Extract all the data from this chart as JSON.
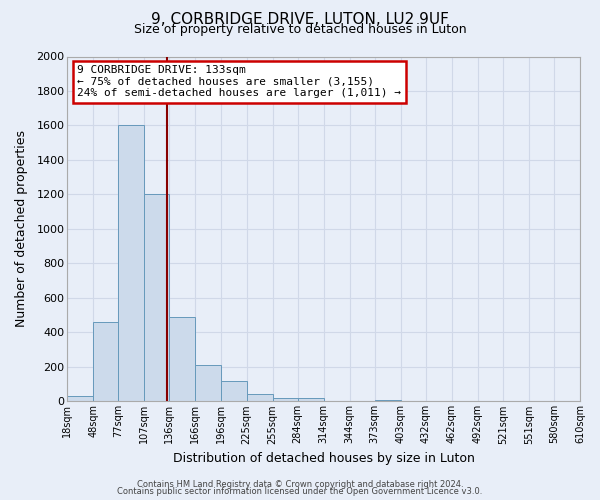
{
  "title": "9, CORBRIDGE DRIVE, LUTON, LU2 9UF",
  "subtitle": "Size of property relative to detached houses in Luton",
  "xlabel": "Distribution of detached houses by size in Luton",
  "ylabel": "Number of detached properties",
  "bar_color": "#ccdaeb",
  "bar_edge_color": "#6699bb",
  "background_color": "#e8eef8",
  "grid_color": "#d0d8e8",
  "bin_edges": [
    18,
    48,
    77,
    107,
    136,
    166,
    196,
    225,
    255,
    284,
    314,
    344,
    373,
    403,
    432,
    462,
    492,
    521,
    551,
    580,
    610
  ],
  "bin_labels": [
    "18sqm",
    "48sqm",
    "77sqm",
    "107sqm",
    "136sqm",
    "166sqm",
    "196sqm",
    "225sqm",
    "255sqm",
    "284sqm",
    "314sqm",
    "344sqm",
    "373sqm",
    "403sqm",
    "432sqm",
    "462sqm",
    "492sqm",
    "521sqm",
    "551sqm",
    "580sqm",
    "610sqm"
  ],
  "counts": [
    30,
    460,
    1600,
    1200,
    490,
    210,
    120,
    45,
    20,
    20,
    0,
    0,
    10,
    5,
    5,
    5,
    0,
    0,
    0,
    0
  ],
  "ylim": [
    0,
    2000
  ],
  "yticks": [
    0,
    200,
    400,
    600,
    800,
    1000,
    1200,
    1400,
    1600,
    1800,
    2000
  ],
  "vline_x": 133,
  "annotation_title": "9 CORBRIDGE DRIVE: 133sqm",
  "annotation_line1": "← 75% of detached houses are smaller (3,155)",
  "annotation_line2": "24% of semi-detached houses are larger (1,011) →",
  "annotation_box_color": "#ffffff",
  "annotation_box_edge": "#cc0000",
  "vline_color": "#880000",
  "footer1": "Contains HM Land Registry data © Crown copyright and database right 2024.",
  "footer2": "Contains public sector information licensed under the Open Government Licence v3.0."
}
